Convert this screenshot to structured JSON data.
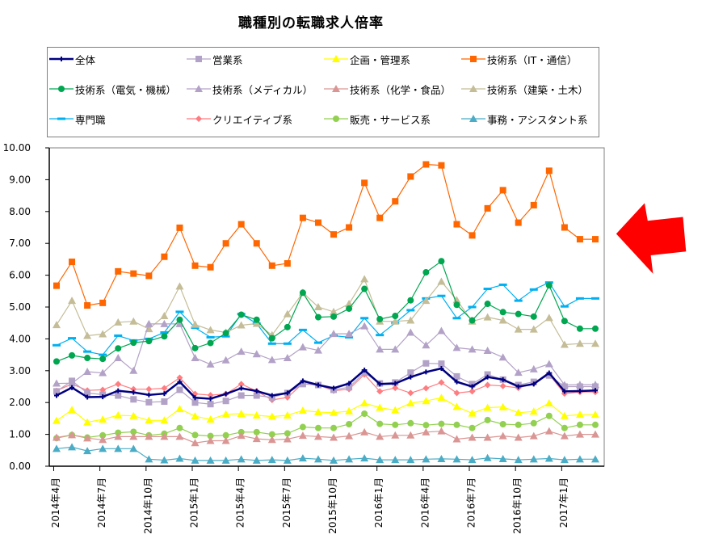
{
  "chart_data": {
    "type": "line",
    "title": "職種別の転職求人倍率",
    "xlabel": "",
    "ylabel": "",
    "ylim": [
      0,
      10
    ],
    "yticks": [
      "0.00",
      "1.00",
      "2.00",
      "3.00",
      "4.00",
      "5.00",
      "6.00",
      "7.00",
      "8.00",
      "9.00",
      "10.00"
    ],
    "grid": true,
    "legend_position": "top",
    "x": [
      "2014年4月",
      "2014年5月",
      "2014年6月",
      "2014年7月",
      "2014年8月",
      "2014年9月",
      "2014年10月",
      "2014年11月",
      "2014年12月",
      "2015年1月",
      "2015年2月",
      "2015年3月",
      "2015年4月",
      "2015年5月",
      "2015年6月",
      "2015年7月",
      "2015年8月",
      "2015年9月",
      "2015年10月",
      "2015年11月",
      "2015年12月",
      "2016年1月",
      "2016年2月",
      "2016年3月",
      "2016年4月",
      "2016年5月",
      "2016年6月",
      "2016年7月",
      "2016年8月",
      "2016年9月",
      "2016年10月",
      "2016年11月",
      "2016年12月",
      "2017年1月",
      "2017年2月",
      "2017年3月"
    ],
    "xtick_labels": [
      {
        "index": 0,
        "label": "2014年4月"
      },
      {
        "index": 3,
        "label": "2014年7月"
      },
      {
        "index": 6,
        "label": "2014年10月"
      },
      {
        "index": 9,
        "label": "2015年1月"
      },
      {
        "index": 12,
        "label": "2015年4月"
      },
      {
        "index": 15,
        "label": "2015年7月"
      },
      {
        "index": 18,
        "label": "2015年10月"
      },
      {
        "index": 21,
        "label": "2016年1月"
      },
      {
        "index": 24,
        "label": "2016年4月"
      },
      {
        "index": 27,
        "label": "2016年7月"
      },
      {
        "index": 30,
        "label": "2016年10月"
      },
      {
        "index": 33,
        "label": "2017年1月"
      }
    ],
    "series": [
      {
        "name": "全体",
        "color": "#000080",
        "marker": "plus",
        "width": 2.5,
        "values": [
          2.22,
          2.47,
          2.17,
          2.18,
          2.37,
          2.32,
          2.24,
          2.28,
          2.65,
          2.15,
          2.12,
          2.27,
          2.45,
          2.36,
          2.22,
          2.3,
          2.68,
          2.55,
          2.45,
          2.6,
          3.02,
          2.58,
          2.6,
          2.8,
          2.96,
          3.07,
          2.65,
          2.5,
          2.8,
          2.72,
          2.5,
          2.58,
          2.93,
          2.35,
          2.36,
          2.38
        ]
      },
      {
        "name": "営業系",
        "color": "#B3A2C7",
        "marker": "square",
        "width": 1.2,
        "values": [
          2.35,
          2.68,
          2.3,
          2.25,
          2.22,
          2.1,
          2.01,
          2.03,
          2.4,
          2.0,
          1.95,
          2.05,
          2.22,
          2.22,
          2.16,
          2.3,
          2.58,
          2.55,
          2.4,
          2.48,
          2.94,
          2.6,
          2.63,
          2.94,
          3.23,
          3.22,
          2.82,
          2.58,
          2.88,
          2.72,
          2.55,
          2.65,
          2.85,
          2.5,
          2.5,
          2.5
        ]
      },
      {
        "name": "企画・管理系",
        "color": "#FFFF00",
        "marker": "triangle",
        "width": 1.2,
        "values": [
          1.43,
          1.77,
          1.38,
          1.47,
          1.6,
          1.58,
          1.44,
          1.44,
          1.8,
          1.57,
          1.47,
          1.63,
          1.65,
          1.6,
          1.56,
          1.6,
          1.75,
          1.7,
          1.68,
          1.73,
          1.98,
          1.84,
          1.76,
          1.98,
          2.05,
          2.15,
          1.87,
          1.66,
          1.84,
          1.86,
          1.68,
          1.72,
          1.98,
          1.58,
          1.62,
          1.62
        ]
      },
      {
        "name": "技術系（IT・通信）",
        "color": "#FF6600",
        "marker": "square",
        "width": 1.2,
        "values": [
          5.67,
          6.42,
          5.05,
          5.13,
          6.12,
          6.05,
          5.98,
          6.58,
          7.49,
          6.3,
          6.25,
          7.0,
          7.6,
          7.0,
          6.3,
          6.37,
          7.8,
          7.65,
          7.28,
          7.5,
          8.9,
          7.8,
          8.32,
          9.1,
          9.48,
          9.45,
          7.6,
          7.25,
          8.1,
          8.67,
          7.65,
          8.2,
          9.28,
          7.5,
          7.13,
          7.13
        ]
      },
      {
        "name": "技術系（電気・機械）",
        "color": "#00A650",
        "marker": "circle",
        "width": 1.2,
        "values": [
          3.29,
          3.48,
          3.4,
          3.37,
          3.7,
          3.88,
          3.93,
          4.08,
          4.6,
          3.71,
          3.87,
          4.18,
          4.76,
          4.6,
          4.02,
          4.37,
          5.45,
          4.68,
          4.7,
          4.95,
          5.57,
          4.62,
          4.72,
          5.21,
          6.09,
          6.44,
          5.07,
          4.58,
          5.1,
          4.84,
          4.78,
          4.7,
          5.68,
          4.56,
          4.32,
          4.32
        ]
      },
      {
        "name": "技術系（メディカル）",
        "color": "#B3A2C7",
        "marker": "triangle",
        "width": 1.2,
        "values": [
          2.6,
          2.61,
          2.97,
          2.93,
          3.4,
          3.0,
          4.47,
          4.47,
          4.47,
          3.4,
          3.2,
          3.33,
          3.6,
          3.52,
          3.34,
          3.4,
          3.74,
          3.64,
          4.16,
          4.16,
          4.4,
          3.67,
          3.67,
          4.2,
          3.8,
          4.25,
          3.72,
          3.67,
          3.63,
          3.42,
          2.94,
          3.05,
          3.21,
          2.55,
          2.56,
          2.56
        ]
      },
      {
        "name": "技術系（化学・食品）",
        "color": "#DA9694",
        "marker": "triangle",
        "width": 1.2,
        "values": [
          0.9,
          0.98,
          0.88,
          0.83,
          0.93,
          0.93,
          0.93,
          0.93,
          0.93,
          0.73,
          0.8,
          0.8,
          0.96,
          0.86,
          0.83,
          0.85,
          0.96,
          0.93,
          0.9,
          0.95,
          1.07,
          0.93,
          0.97,
          0.97,
          1.07,
          1.1,
          0.85,
          0.9,
          0.9,
          0.95,
          0.9,
          0.95,
          1.1,
          0.95,
          1.0,
          1.0
        ]
      },
      {
        "name": "技術系（建築・土木）",
        "color": "#C4BD97",
        "marker": "triangle",
        "width": 1.2,
        "values": [
          4.44,
          5.2,
          4.1,
          4.15,
          4.52,
          4.55,
          4.31,
          4.72,
          5.65,
          4.45,
          4.28,
          4.2,
          4.43,
          4.48,
          4.12,
          4.78,
          5.45,
          5.0,
          4.85,
          5.1,
          5.88,
          4.55,
          4.55,
          4.58,
          5.2,
          5.8,
          5.22,
          4.55,
          4.68,
          4.58,
          4.3,
          4.3,
          4.66,
          3.82,
          3.85,
          3.85
        ]
      },
      {
        "name": "専門職",
        "color": "#00B0F0",
        "marker": "dash",
        "width": 1.2,
        "values": [
          3.8,
          4.02,
          3.6,
          3.5,
          4.1,
          3.95,
          4.0,
          4.2,
          4.85,
          4.35,
          4.05,
          4.08,
          4.78,
          4.48,
          3.85,
          3.85,
          4.28,
          3.88,
          4.1,
          4.05,
          4.65,
          4.12,
          4.5,
          4.9,
          5.27,
          5.35,
          4.65,
          5.0,
          5.57,
          5.7,
          5.2,
          5.55,
          5.77,
          5.02,
          5.27,
          5.27
        ]
      },
      {
        "name": "クリエイティブ系",
        "color": "#FF7C80",
        "marker": "diamond",
        "width": 1.2,
        "values": [
          2.37,
          2.58,
          2.38,
          2.4,
          2.58,
          2.42,
          2.42,
          2.45,
          2.78,
          2.27,
          2.23,
          2.27,
          2.58,
          2.36,
          2.08,
          2.16,
          2.6,
          2.55,
          2.37,
          2.42,
          2.88,
          2.35,
          2.46,
          2.3,
          2.45,
          2.63,
          2.3,
          2.35,
          2.55,
          2.52,
          2.46,
          2.6,
          2.88,
          2.28,
          2.33,
          2.33
        ]
      },
      {
        "name": "販売・サービス系",
        "color": "#92D050",
        "marker": "circle",
        "width": 1.2,
        "values": [
          0.88,
          0.98,
          0.9,
          0.97,
          1.05,
          1.08,
          0.97,
          1.02,
          1.2,
          0.98,
          0.95,
          0.97,
          1.07,
          1.07,
          1.0,
          1.03,
          1.23,
          1.2,
          1.2,
          1.32,
          1.65,
          1.33,
          1.3,
          1.35,
          1.29,
          1.33,
          1.3,
          1.2,
          1.45,
          1.32,
          1.3,
          1.35,
          1.58,
          1.2,
          1.3,
          1.3
        ]
      },
      {
        "name": "事務・アシスタント系",
        "color": "#4BACC6",
        "marker": "triangle",
        "width": 1.2,
        "values": [
          0.55,
          0.6,
          0.48,
          0.55,
          0.55,
          0.55,
          0.22,
          0.19,
          0.24,
          0.18,
          0.18,
          0.18,
          0.22,
          0.18,
          0.2,
          0.18,
          0.25,
          0.22,
          0.18,
          0.22,
          0.25,
          0.2,
          0.2,
          0.2,
          0.22,
          0.23,
          0.22,
          0.2,
          0.26,
          0.23,
          0.2,
          0.22,
          0.24,
          0.2,
          0.22,
          0.22
        ]
      }
    ]
  },
  "legend": {
    "items": [
      {
        "label": "全体"
      },
      {
        "label": "営業系"
      },
      {
        "label": "企画・管理系"
      },
      {
        "label": "技術系（IT・通信）"
      },
      {
        "label": "技術系（電気・機械）"
      },
      {
        "label": "技術系（メディカル）"
      },
      {
        "label": "技術系（化学・食品）"
      },
      {
        "label": "技術系（建築・土木）"
      },
      {
        "label": "専門職"
      },
      {
        "label": "クリエイティブ系"
      },
      {
        "label": "販売・サービス系"
      },
      {
        "label": "事務・アシスタント系"
      }
    ]
  },
  "annotation": {
    "arrow_icon": "red-left-arrow",
    "color": "#FF0000"
  }
}
